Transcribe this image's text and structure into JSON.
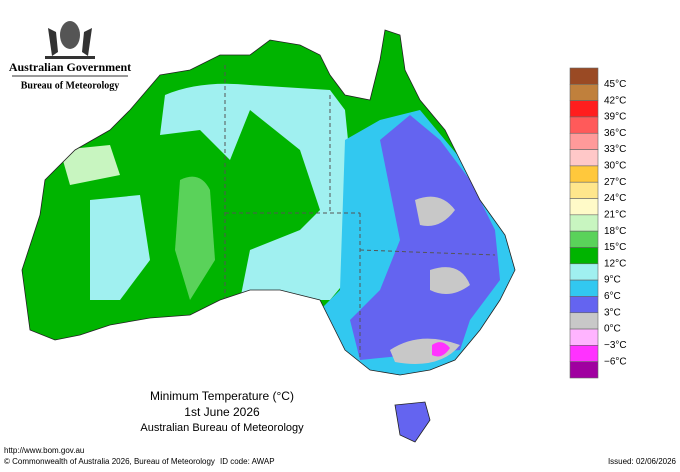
{
  "header": {
    "government": "Australian Government",
    "agency": "Bureau of Meteorology"
  },
  "map": {
    "title": "Minimum Temperature (°C)",
    "date": "1st June 2026",
    "source": "Australian Bureau of Meteorology"
  },
  "legend": {
    "colors": [
      "#9a4a24",
      "#c0803c",
      "#ff1e1e",
      "#ff5a5a",
      "#ff9a9a",
      "#ffc8c8",
      "#ffc83c",
      "#ffe68c",
      "#fffac8",
      "#c8f5c0",
      "#5ad25a",
      "#00b400",
      "#a0f0f0",
      "#32c8f0",
      "#6464f0",
      "#c8c8c8",
      "#ffb4ff",
      "#ff32ff",
      "#a000a0"
    ],
    "labels": [
      "45°C",
      "42°C",
      "39°C",
      "36°C",
      "33°C",
      "30°C",
      "27°C",
      "24°C",
      "21°C",
      "18°C",
      "15°C",
      "12°C",
      "9°C",
      "6°C",
      "3°C",
      "0°C",
      "−3°C",
      "−6°C"
    ]
  },
  "footer": {
    "url": "http://www.bom.gov.au",
    "copyright": "© Commonwealth of Australia 2026, Bureau of Meteorology",
    "id_code": "ID code: AWAP",
    "issued": "Issued: 02/06/2026"
  }
}
